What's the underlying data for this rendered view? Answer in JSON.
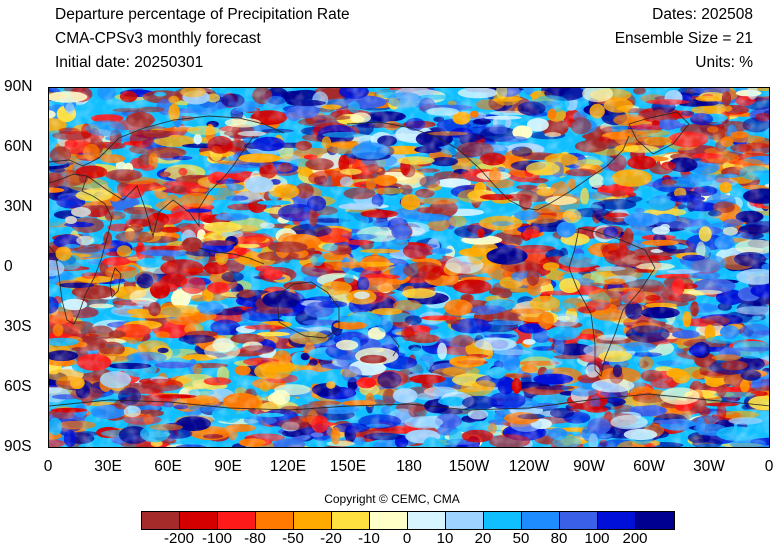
{
  "header": {
    "title": "Departure percentage of Precipitation Rate",
    "model": "CMA-CPSv3 monthly forecast",
    "initial_date": "Initial date: 20250301",
    "dates": "Dates: 202508",
    "ensemble": "Ensemble Size = 21",
    "units": "Units: %"
  },
  "map": {
    "lat_labels": [
      "90N",
      "60N",
      "30N",
      "0",
      "30S",
      "60S",
      "90S"
    ],
    "lon_labels": [
      "0",
      "30E",
      "60E",
      "90E",
      "120E",
      "150E",
      "180",
      "150W",
      "120W",
      "90W",
      "60W",
      "30W",
      "0"
    ]
  },
  "copyright": "Copyright © CEMC, CMA",
  "colorbar": {
    "colors": [
      "#a52a2a",
      "#d40000",
      "#ff1a1a",
      "#ff7a00",
      "#ffaa00",
      "#ffe040",
      "#ffffc8",
      "#d6f5ff",
      "#9fd3ff",
      "#10bfff",
      "#1e8cff",
      "#3a60e8",
      "#0010d8",
      "#000090"
    ],
    "labels": [
      "-200",
      "-100",
      "-80",
      "-50",
      "-20",
      "-10",
      "0",
      "10",
      "20",
      "50",
      "80",
      "100",
      "200"
    ]
  }
}
